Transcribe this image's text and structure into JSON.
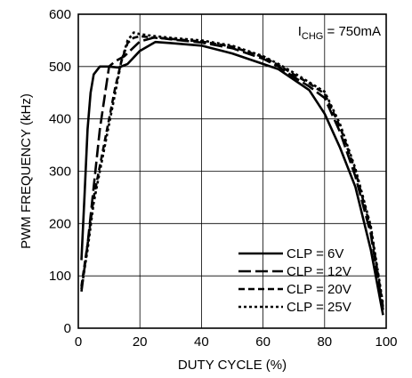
{
  "chart_data": {
    "type": "line",
    "xlabel": "DUTY CYCLE (%)",
    "ylabel": "PWM FREQUENCY (kHz)",
    "xlim": [
      0,
      100
    ],
    "ylim": [
      0,
      600
    ],
    "xticks": [
      0,
      20,
      40,
      60,
      80,
      100
    ],
    "yticks": [
      0,
      100,
      200,
      300,
      400,
      500,
      600
    ],
    "grid": true,
    "legend_position": "bottom-right",
    "annotation": {
      "main": "I",
      "sub": "CHG",
      "rest": " = 750mA"
    },
    "series": [
      {
        "name": "CLP = 6V",
        "style": "solid",
        "points": [
          [
            1,
            130
          ],
          [
            2,
            250
          ],
          [
            3,
            380
          ],
          [
            4,
            450
          ],
          [
            5,
            485
          ],
          [
            7,
            500
          ],
          [
            10,
            500
          ],
          [
            13,
            498
          ],
          [
            16,
            505
          ],
          [
            20,
            530
          ],
          [
            25,
            547
          ],
          [
            30,
            545
          ],
          [
            40,
            540
          ],
          [
            50,
            525
          ],
          [
            60,
            505
          ],
          [
            65,
            495
          ],
          [
            70,
            475
          ],
          [
            75,
            455
          ],
          [
            80,
            410
          ],
          [
            85,
            345
          ],
          [
            90,
            270
          ],
          [
            95,
            150
          ],
          [
            99,
            25
          ]
        ]
      },
      {
        "name": "CLP = 12V",
        "style": "long-dash",
        "points": [
          [
            1,
            70
          ],
          [
            3,
            160
          ],
          [
            5,
            270
          ],
          [
            7,
            380
          ],
          [
            9,
            460
          ],
          [
            10,
            500
          ],
          [
            12,
            510
          ],
          [
            15,
            520
          ],
          [
            20,
            548
          ],
          [
            25,
            556
          ],
          [
            30,
            552
          ],
          [
            40,
            546
          ],
          [
            50,
            535
          ],
          [
            60,
            515
          ],
          [
            65,
            500
          ],
          [
            70,
            480
          ],
          [
            75,
            462
          ],
          [
            80,
            440
          ],
          [
            85,
            375
          ],
          [
            90,
            290
          ],
          [
            95,
            180
          ],
          [
            99,
            35
          ]
        ]
      },
      {
        "name": "CLP = 20V",
        "style": "dash",
        "points": [
          [
            1,
            80
          ],
          [
            3,
            160
          ],
          [
            5,
            250
          ],
          [
            8,
            340
          ],
          [
            10,
            400
          ],
          [
            12,
            460
          ],
          [
            14,
            510
          ],
          [
            16,
            545
          ],
          [
            18,
            555
          ],
          [
            20,
            558
          ],
          [
            25,
            555
          ],
          [
            30,
            553
          ],
          [
            40,
            548
          ],
          [
            50,
            538
          ],
          [
            60,
            518
          ],
          [
            65,
            503
          ],
          [
            70,
            485
          ],
          [
            75,
            468
          ],
          [
            80,
            448
          ],
          [
            85,
            385
          ],
          [
            90,
            300
          ],
          [
            95,
            190
          ],
          [
            99,
            40
          ]
        ]
      },
      {
        "name": "CLP = 25V",
        "style": "dot",
        "points": [
          [
            1,
            75
          ],
          [
            3,
            150
          ],
          [
            5,
            240
          ],
          [
            8,
            330
          ],
          [
            10,
            390
          ],
          [
            12,
            450
          ],
          [
            14,
            510
          ],
          [
            16,
            550
          ],
          [
            18,
            565
          ],
          [
            20,
            562
          ],
          [
            25,
            558
          ],
          [
            30,
            555
          ],
          [
            40,
            550
          ],
          [
            50,
            540
          ],
          [
            60,
            520
          ],
          [
            65,
            505
          ],
          [
            70,
            488
          ],
          [
            75,
            470
          ],
          [
            80,
            452
          ],
          [
            85,
            390
          ],
          [
            90,
            305
          ],
          [
            95,
            195
          ],
          [
            99,
            45
          ]
        ]
      }
    ]
  }
}
